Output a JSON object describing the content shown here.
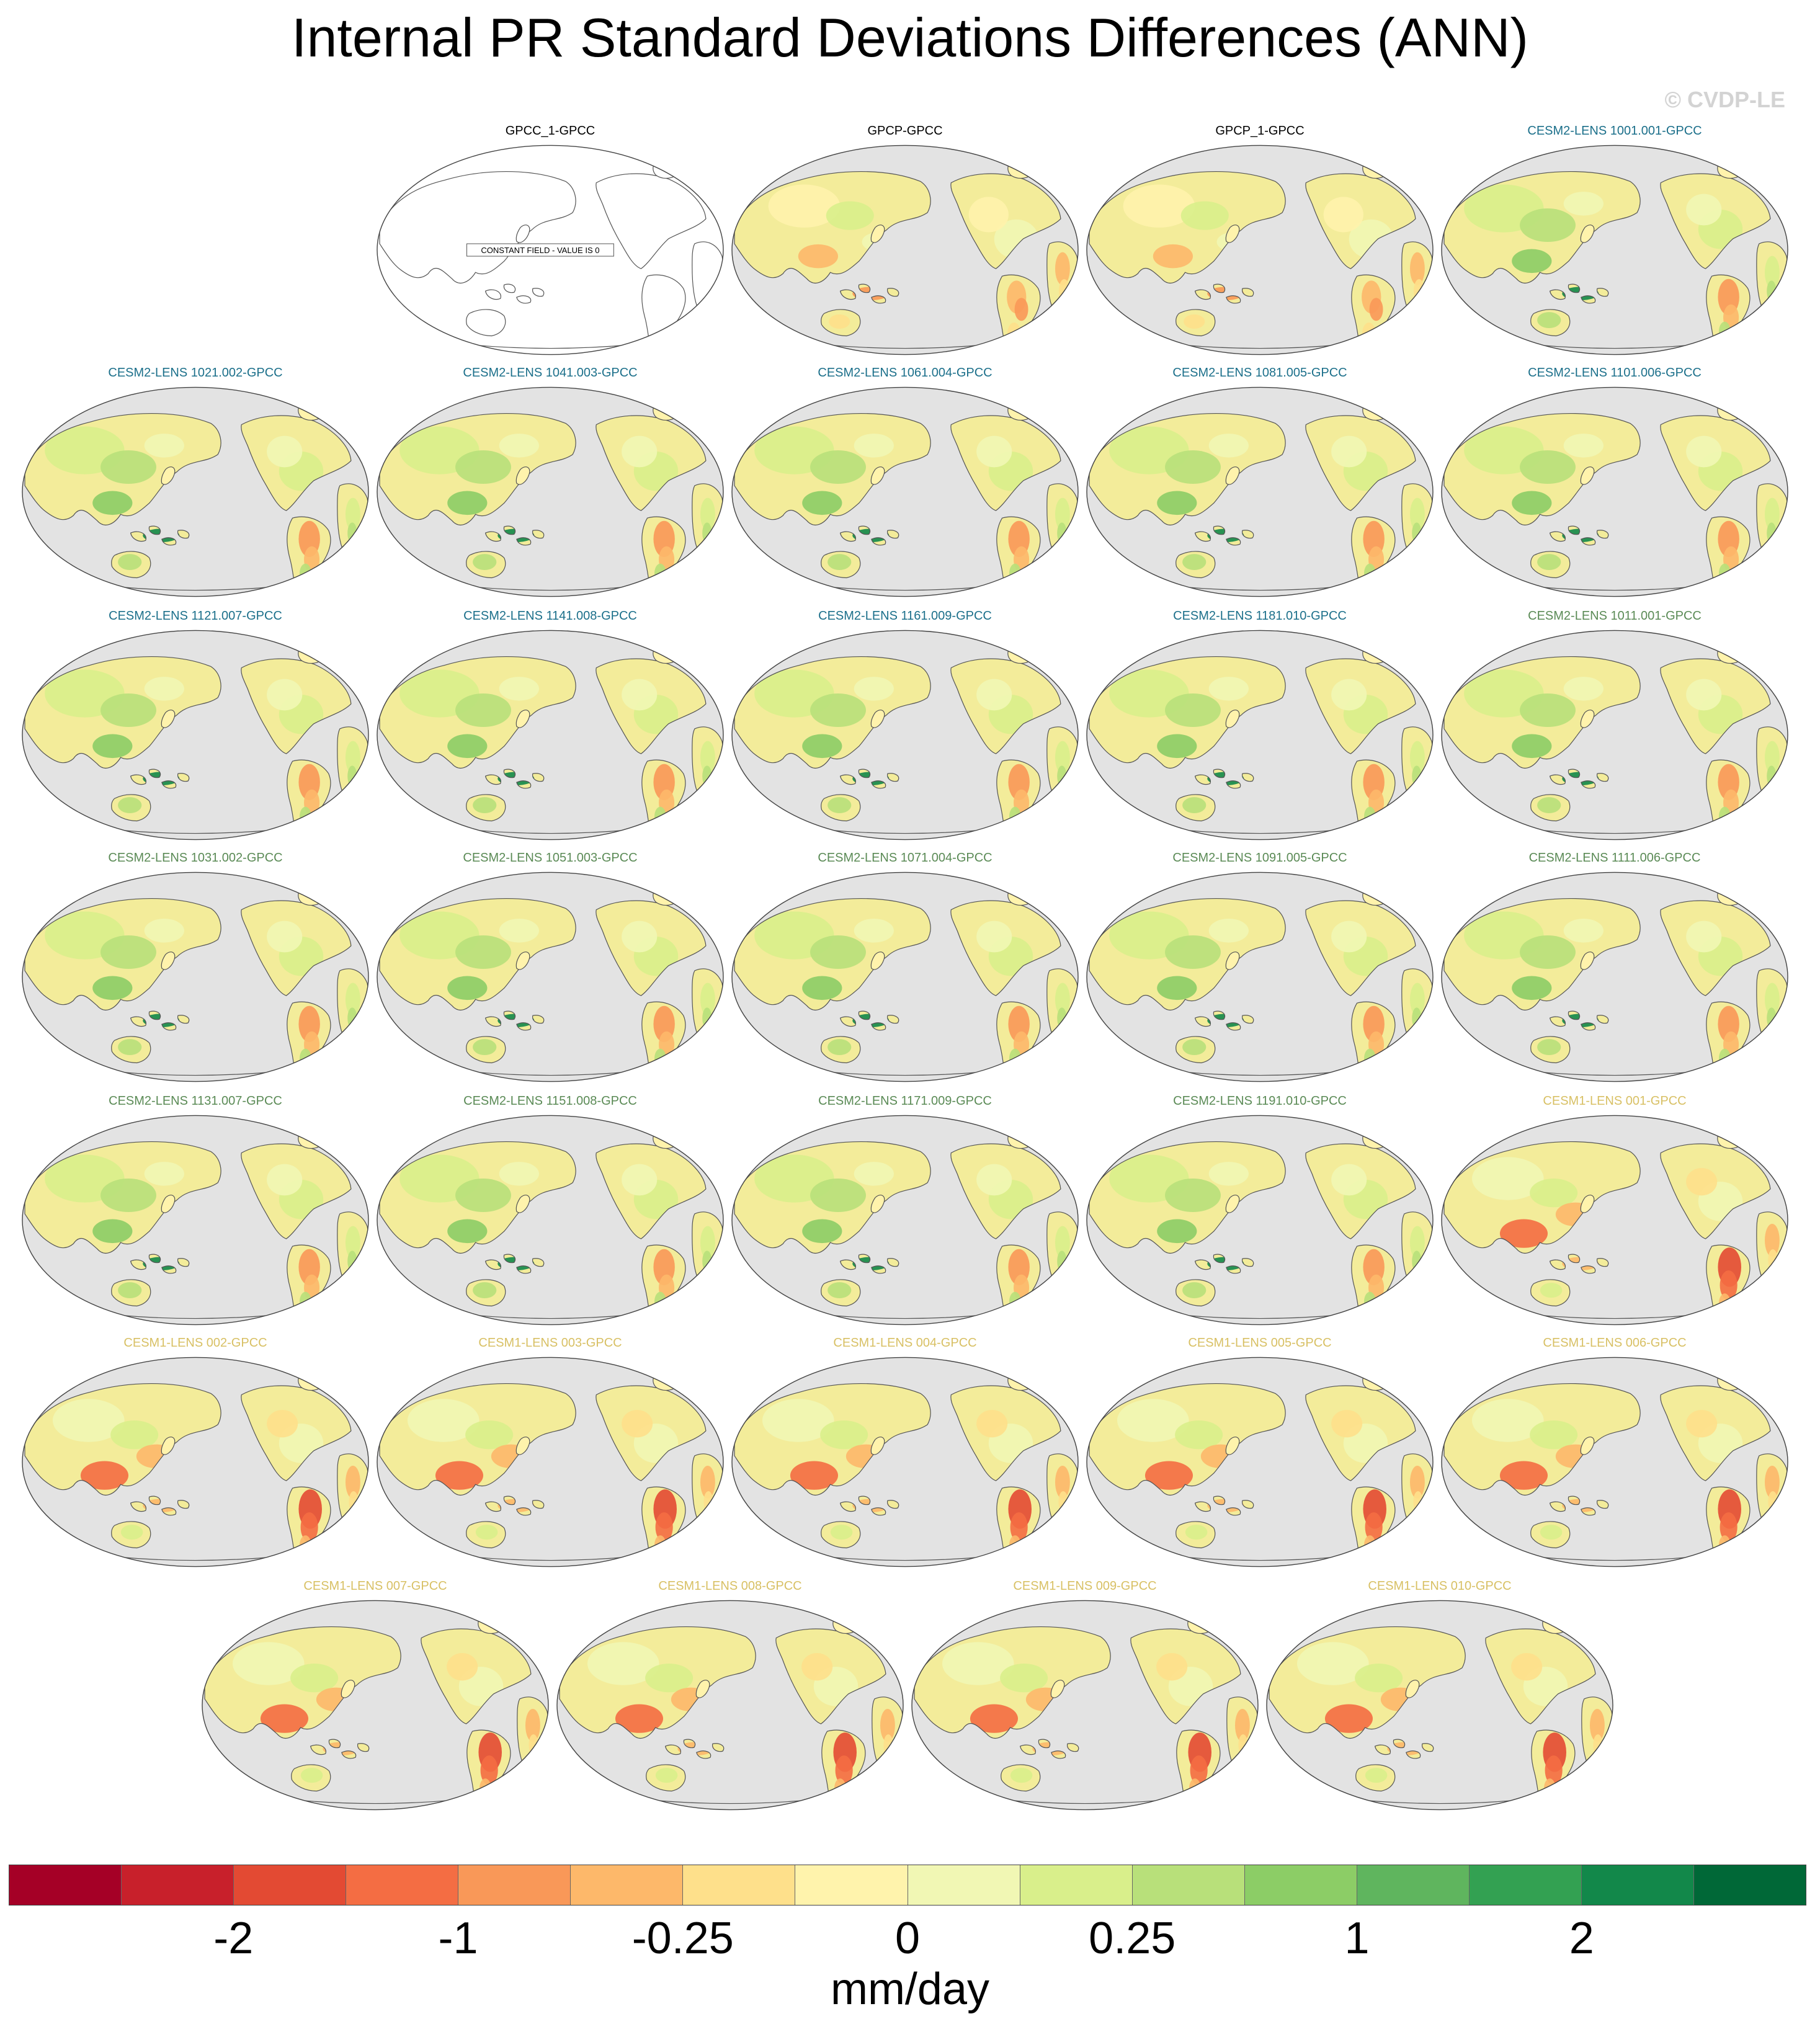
{
  "figure": {
    "title": "Internal PR Standard Deviations Differences (ANN)",
    "copyright": "© CVDP-LE"
  },
  "colors": {
    "ocean": "#e3e3e3",
    "coast": "#555555",
    "land_base": "#f3ec9a",
    "title_obs": "#000000",
    "title_cesm2_blue": "#1b6f8a",
    "title_cesm2_green": "#5a8a55",
    "title_cesm1": "#d8c064"
  },
  "panels": [
    {
      "title": "GPCC_1-GPCC",
      "group": "obs",
      "constant": true,
      "constant_text": "CONSTANT FIELD - VALUE IS 0"
    },
    {
      "title": "GPCP-GPCC",
      "group": "obs",
      "pattern": "obs"
    },
    {
      "title": "GPCP_1-GPCC",
      "group": "obs",
      "pattern": "obs"
    },
    {
      "title": "CESM2-LENS 1001.001-GPCC",
      "group": "cesm2_blue",
      "pattern": "cesm2"
    },
    {
      "title": "CESM2-LENS 1021.002-GPCC",
      "group": "cesm2_blue",
      "pattern": "cesm2"
    },
    {
      "title": "CESM2-LENS 1041.003-GPCC",
      "group": "cesm2_blue",
      "pattern": "cesm2"
    },
    {
      "title": "CESM2-LENS 1061.004-GPCC",
      "group": "cesm2_blue",
      "pattern": "cesm2"
    },
    {
      "title": "CESM2-LENS 1081.005-GPCC",
      "group": "cesm2_blue",
      "pattern": "cesm2"
    },
    {
      "title": "CESM2-LENS 1101.006-GPCC",
      "group": "cesm2_blue",
      "pattern": "cesm2"
    },
    {
      "title": "CESM2-LENS 1121.007-GPCC",
      "group": "cesm2_blue",
      "pattern": "cesm2"
    },
    {
      "title": "CESM2-LENS 1141.008-GPCC",
      "group": "cesm2_blue",
      "pattern": "cesm2"
    },
    {
      "title": "CESM2-LENS 1161.009-GPCC",
      "group": "cesm2_blue",
      "pattern": "cesm2"
    },
    {
      "title": "CESM2-LENS 1181.010-GPCC",
      "group": "cesm2_blue",
      "pattern": "cesm2"
    },
    {
      "title": "CESM2-LENS 1011.001-GPCC",
      "group": "cesm2_green",
      "pattern": "cesm2"
    },
    {
      "title": "CESM2-LENS 1031.002-GPCC",
      "group": "cesm2_green",
      "pattern": "cesm2"
    },
    {
      "title": "CESM2-LENS 1051.003-GPCC",
      "group": "cesm2_green",
      "pattern": "cesm2"
    },
    {
      "title": "CESM2-LENS 1071.004-GPCC",
      "group": "cesm2_green",
      "pattern": "cesm2"
    },
    {
      "title": "CESM2-LENS 1091.005-GPCC",
      "group": "cesm2_green",
      "pattern": "cesm2"
    },
    {
      "title": "CESM2-LENS 1111.006-GPCC",
      "group": "cesm2_green",
      "pattern": "cesm2"
    },
    {
      "title": "CESM2-LENS 1131.007-GPCC",
      "group": "cesm2_green",
      "pattern": "cesm2"
    },
    {
      "title": "CESM2-LENS 1151.008-GPCC",
      "group": "cesm2_green",
      "pattern": "cesm2"
    },
    {
      "title": "CESM2-LENS 1171.009-GPCC",
      "group": "cesm2_green",
      "pattern": "cesm2"
    },
    {
      "title": "CESM2-LENS 1191.010-GPCC",
      "group": "cesm2_green",
      "pattern": "cesm2"
    },
    {
      "title": "CESM1-LENS 001-GPCC",
      "group": "cesm1",
      "pattern": "cesm1"
    },
    {
      "title": "CESM1-LENS 002-GPCC",
      "group": "cesm1",
      "pattern": "cesm1"
    },
    {
      "title": "CESM1-LENS 003-GPCC",
      "group": "cesm1",
      "pattern": "cesm1"
    },
    {
      "title": "CESM1-LENS 004-GPCC",
      "group": "cesm1",
      "pattern": "cesm1"
    },
    {
      "title": "CESM1-LENS 005-GPCC",
      "group": "cesm1",
      "pattern": "cesm1"
    },
    {
      "title": "CESM1-LENS 006-GPCC",
      "group": "cesm1",
      "pattern": "cesm1"
    },
    {
      "title": "CESM1-LENS 007-GPCC",
      "group": "cesm1",
      "pattern": "cesm1"
    },
    {
      "title": "CESM1-LENS 008-GPCC",
      "group": "cesm1",
      "pattern": "cesm1"
    },
    {
      "title": "CESM1-LENS 009-GPCC",
      "group": "cesm1",
      "pattern": "cesm1"
    },
    {
      "title": "CESM1-LENS 010-GPCC",
      "group": "cesm1",
      "pattern": "cesm1"
    }
  ],
  "colorbar": {
    "units": "mm/day",
    "colors": [
      "#a50026",
      "#c8202b",
      "#e34a33",
      "#f46d43",
      "#f99858",
      "#fdb86a",
      "#fee08b",
      "#fff3ac",
      "#f1f7b4",
      "#d9ef8b",
      "#b8e07a",
      "#8ccd66",
      "#5fb55e",
      "#33a152",
      "#12884a",
      "#006837"
    ],
    "labels": [
      {
        "text": "-2",
        "boundary": 2
      },
      {
        "text": "-1",
        "boundary": 4
      },
      {
        "text": "-0.25",
        "boundary": 6
      },
      {
        "text": "0",
        "boundary": 8
      },
      {
        "text": "0.25",
        "boundary": 10
      },
      {
        "text": "1",
        "boundary": 12
      },
      {
        "text": "2",
        "boundary": 14
      }
    ]
  }
}
